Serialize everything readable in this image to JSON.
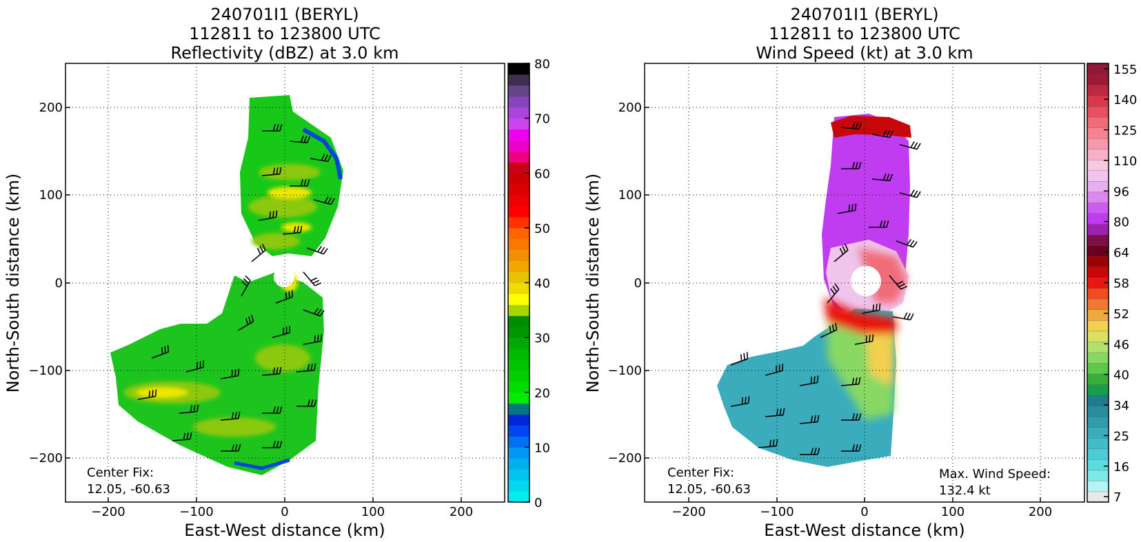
{
  "chart_data": [
    {
      "type": "heatmap",
      "title_lines": [
        "240701I1 (BERYL)",
        "112811 to 123800 UTC",
        "Reflectivity (dBZ) at 3.0 km"
      ],
      "xlabel": "East-West distance (km)",
      "ylabel": "North-South distance (km)",
      "xlim": [
        -250,
        250
      ],
      "ylim": [
        -250,
        250
      ],
      "x_ticks": [
        -200,
        -100,
        0,
        100,
        200
      ],
      "y_ticks": [
        -200,
        -100,
        0,
        100,
        200
      ],
      "x_tick_labels": [
        "−200",
        "−100",
        "0",
        "100",
        "200"
      ],
      "y_tick_labels": [
        "−200",
        "−100",
        "0",
        "100",
        "200"
      ],
      "grid": true,
      "annotations": {
        "center_label": "Center Fix:",
        "center_value": "12.05, -60.63"
      },
      "colorbar": {
        "min": 0,
        "max": 80,
        "tick_values": [
          0,
          10,
          20,
          30,
          40,
          50,
          60,
          70,
          80
        ],
        "tick_labels": [
          "0",
          "10",
          "20",
          "30",
          "40",
          "50",
          "60",
          "70",
          "80"
        ],
        "colors": [
          "#00eded",
          "#00d8ed",
          "#00c4ed",
          "#00b0ed",
          "#0098f2",
          "#0070f2",
          "#0045f2",
          "#0028d8",
          "#00787f",
          "#00ec00",
          "#00de00",
          "#00d000",
          "#00c400",
          "#00b800",
          "#00a800",
          "#009600",
          "#008c00",
          "#a8d400",
          "#ffff00",
          "#f0dc00",
          "#e8c400",
          "#f0a800",
          "#f09000",
          "#f87800",
          "#ff6400",
          "#ff3200",
          "#ff0000",
          "#ee0000",
          "#dd0000",
          "#cc0000",
          "#c80018",
          "#ee0080",
          "#ee00cc",
          "#ee00ee",
          "#cc44ee",
          "#aa44dd",
          "#8844bb",
          "#664488",
          "#3f2f4f",
          "#000000"
        ]
      }
    },
    {
      "type": "heatmap",
      "title_lines": [
        "240701I1 (BERYL)",
        "112811 to 123800 UTC",
        "Wind Speed (kt) at 3.0 km"
      ],
      "xlabel": "East-West distance (km)",
      "ylabel": "North-South distance (km)",
      "xlim": [
        -250,
        250
      ],
      "ylim": [
        -250,
        250
      ],
      "x_ticks": [
        -200,
        -100,
        0,
        100,
        200
      ],
      "y_ticks": [
        -200,
        -100,
        0,
        100,
        200
      ],
      "x_tick_labels": [
        "−200",
        "−100",
        "0",
        "100",
        "200"
      ],
      "y_tick_labels": [
        "−200",
        "−100",
        "0",
        "100",
        "200"
      ],
      "grid": true,
      "annotations": {
        "center_label": "Center Fix:",
        "center_value": "12.05, -60.63",
        "max_label": "Max. Wind Speed:",
        "max_value": "132.4 kt"
      },
      "colorbar": {
        "tick_labels": [
          "7",
          "16",
          "25",
          "34",
          "40",
          "46",
          "52",
          "58",
          "64",
          "80",
          "96",
          "110",
          "125",
          "140",
          "155"
        ],
        "colors": [
          "#e8e8e8",
          "#b4f4f4",
          "#7ce8e8",
          "#5cdcdc",
          "#4cccd4",
          "#44bcc8",
          "#3aacbc",
          "#309cac",
          "#2a8c9c",
          "#1e7c8c",
          "#1a9c4c",
          "#38b038",
          "#5cc84c",
          "#88d864",
          "#b4e070",
          "#dce060",
          "#f4d050",
          "#f0a840",
          "#f07830",
          "#f04c20",
          "#e81810",
          "#c80808",
          "#a00000",
          "#6c0020",
          "#7c1044",
          "#a020b0",
          "#c03cf0",
          "#cc5cf0",
          "#dc88f0",
          "#e8acf0",
          "#f0c4ec",
          "#f8c8e0",
          "#f8b0c8",
          "#f898ac",
          "#f88290",
          "#f06c78",
          "#e85060",
          "#d83848",
          "#c02840",
          "#a01838",
          "#901838"
        ],
        "scale_length": 41
      }
    }
  ]
}
